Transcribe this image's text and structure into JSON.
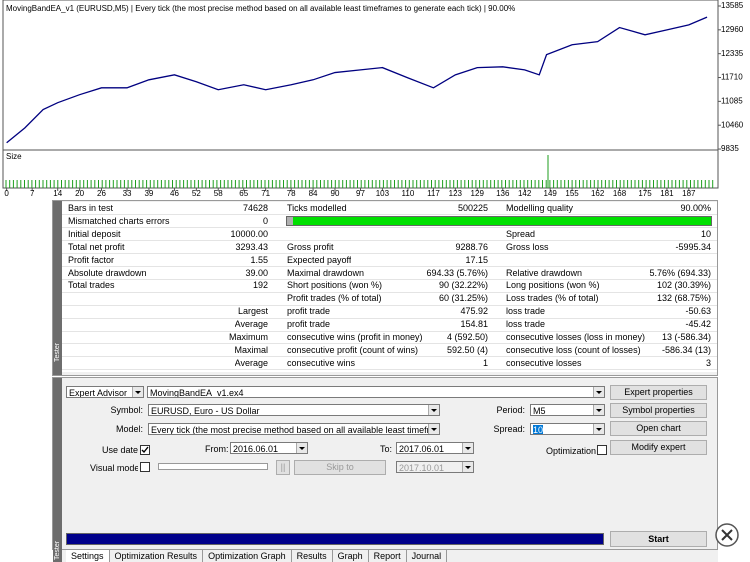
{
  "chart_data": {
    "type": "line",
    "title": "MovingBandEA_v1 (EURUSD,M5) | Every tick (the most precise method based on all available least timeframes to generate each tick) | 90.00%",
    "panel_label": "Size",
    "color": "#000080",
    "x": [
      0,
      5,
      10,
      14,
      20,
      26,
      33,
      39,
      46,
      52,
      58,
      65,
      71,
      78,
      84,
      90,
      97,
      103,
      110,
      117,
      123,
      129,
      136,
      142,
      146,
      148,
      155,
      162,
      168,
      175,
      181,
      187,
      192
    ],
    "values": [
      10000,
      10390,
      10870,
      11050,
      11260,
      11440,
      11440,
      11650,
      11780,
      11600,
      11390,
      11520,
      11390,
      11520,
      11650,
      11840,
      11910,
      11970,
      11700,
      11440,
      11780,
      11970,
      11990,
      11910,
      11780,
      12310,
      12570,
      12650,
      13020,
      12830,
      12960,
      13090,
      13293
    ],
    "xlim": [
      -1,
      195
    ],
    "ylim": [
      9810,
      13742
    ],
    "xticks": [
      0,
      7,
      14,
      20,
      26,
      33,
      39,
      46,
      52,
      58,
      65,
      71,
      78,
      84,
      90,
      97,
      103,
      110,
      117,
      123,
      129,
      136,
      142,
      149,
      155,
      162,
      168,
      175,
      181,
      187
    ],
    "yticks": [
      9835,
      10460,
      11085,
      11710,
      12335,
      12960,
      13585
    ]
  },
  "report": {
    "rows": [
      {
        "label1": "Bars in test",
        "value1": "74628",
        "label2": "Ticks modelled",
        "value2": "500225",
        "label3": "Modelling quality",
        "value3": "90.00%"
      },
      {
        "label1": "Mismatched charts errors",
        "value1": "0"
      },
      {
        "label1": "Initial deposit",
        "value1": "10000.00",
        "label3": "Spread",
        "value3": "10"
      },
      {
        "label1": "Total net profit",
        "value1": "3293.43",
        "label2": "Gross profit",
        "value2": "9288.76",
        "label3": "Gross loss",
        "value3": "-5995.34"
      },
      {
        "label1": "Profit factor",
        "value1": "1.55",
        "label2": "Expected payoff",
        "value2": "17.15"
      },
      {
        "label1": "Absolute drawdown",
        "value1": "39.00",
        "label2": "Maximal drawdown",
        "value2": "694.33 (5.76%)",
        "label3": "Relative drawdown",
        "value3": "5.76% (694.33)"
      },
      {
        "label1": "Total trades",
        "value1": "192",
        "label2": "Short positions (won %)",
        "value2": "90 (32.22%)",
        "label3": "Long positions (won %)",
        "value3": "102 (30.39%)"
      },
      {
        "label2": "Profit trades (% of total)",
        "value2": "60 (31.25%)",
        "label3": "Loss trades (% of total)",
        "value3": "132 (68.75%)"
      },
      {
        "value1": "Largest",
        "label2": "profit trade",
        "value2": "475.92",
        "label3": "loss trade",
        "value3": "-50.63"
      },
      {
        "value1": "Average",
        "label2": "profit trade",
        "value2": "154.81",
        "label3": "loss trade",
        "value3": "-45.42"
      },
      {
        "value1": "Maximum",
        "label2": "consecutive wins (profit in money)",
        "value2": "4 (592.50)",
        "label3": "consecutive losses (loss in money)",
        "value3": "13 (-586.34)"
      },
      {
        "value1": "Maximal",
        "label2": "consecutive profit (count of wins)",
        "value2": "592.50 (4)",
        "label3": "consecutive loss (count of losses)",
        "value3": "-586.34 (13)"
      },
      {
        "value1": "Average",
        "label2": "consecutive wins",
        "value2": "1",
        "label3": "consecutive losses",
        "value3": "3"
      }
    ]
  },
  "settings": {
    "expert_type": "Expert Advisor",
    "expert_file": "MovingBandEA_v1.ex4",
    "symbol_label": "Symbol:",
    "symbol": "EURUSD, Euro - US Dollar",
    "period_label": "Period:",
    "period": "M5",
    "model_label": "Model:",
    "model": "Every tick (the most precise method based on all available least timeframes to generate eac",
    "spread_label": "Spread:",
    "spread": "10",
    "use_date_label": "Use date",
    "from_label": "From:",
    "from": "2016.06.01",
    "to_label": "To:",
    "to": "2017.06.01",
    "optimization_label": "Optimization",
    "visual_mode_label": "Visual mode",
    "pause": "||",
    "skip_to": "Skip to",
    "skip_date": "2017.10.01"
  },
  "buttons": [
    "Expert properties",
    "Symbol properties",
    "Open chart",
    "Modify expert",
    "Start"
  ],
  "tabs": [
    "Settings",
    "Optimization Results",
    "Optimization Graph",
    "Results",
    "Graph",
    "Report",
    "Journal"
  ],
  "side_label": "Tester"
}
